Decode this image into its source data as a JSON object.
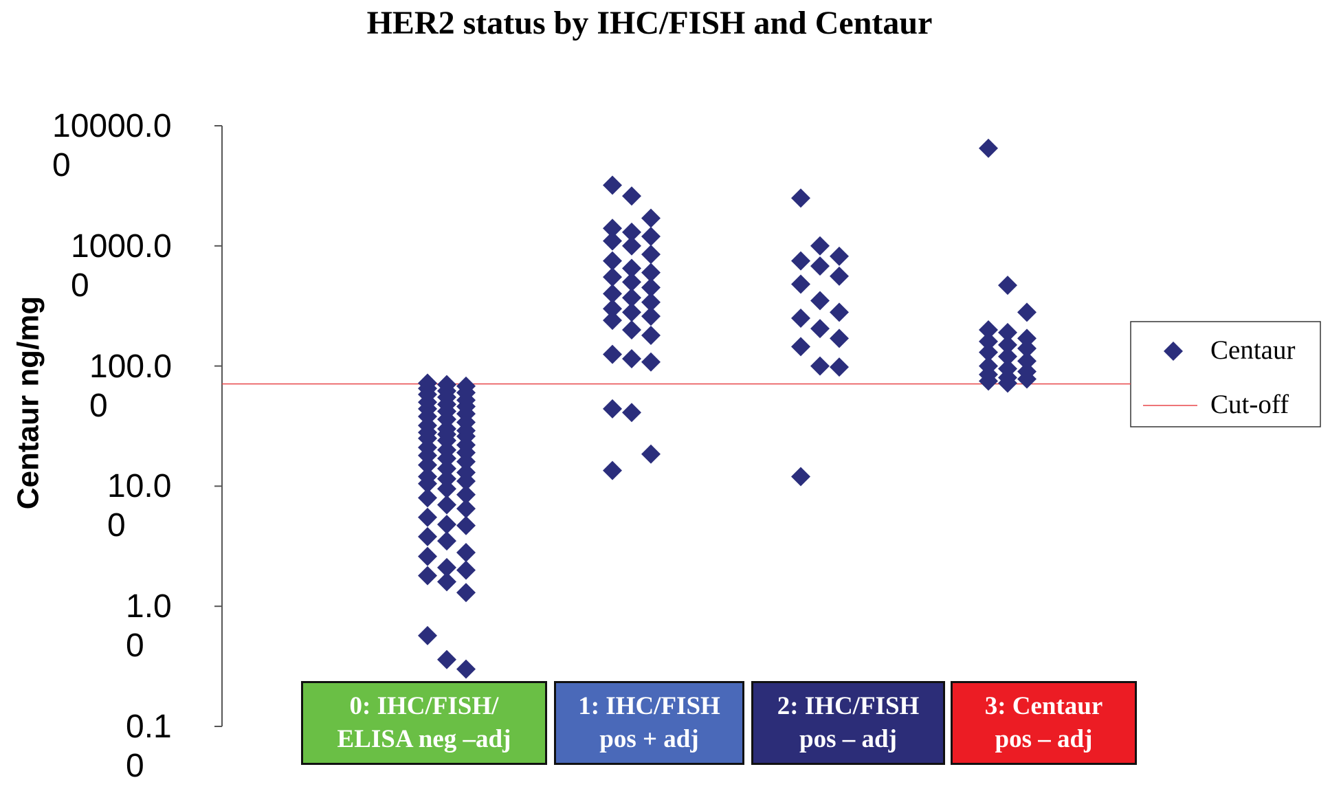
{
  "chart_data": {
    "type": "scatter",
    "title": "HER2 status by IHC/FISH and Centaur",
    "y_label": "Centaur ng/mg",
    "log_y": true,
    "ylim": [
      0.1,
      10000
    ],
    "yticks": [
      {
        "value": 10000,
        "label": "10000.00"
      },
      {
        "value": 1000,
        "label": "1000.00"
      },
      {
        "value": 100,
        "label": "100.00"
      },
      {
        "value": 10,
        "label": "10.00"
      },
      {
        "value": 1,
        "label": "1.00"
      },
      {
        "value": 0.1,
        "label": "0.10"
      }
    ],
    "categories": [
      "0: IHC/FISH/\nELISA neg  –adj",
      "1: IHC/FISH\npos + adj",
      "2: IHC/FISH\npos  –  adj",
      "3: Centaur\npos  –  adj"
    ],
    "category_colors": [
      "#6abf45",
      "#4a69b9",
      "#2c2d78",
      "#ec1c24"
    ],
    "series": [
      {
        "name": "Centaur",
        "color": "#2b2e7c",
        "values": [
          [
            72,
            70,
            68,
            65,
            62,
            60,
            58,
            55,
            52,
            50,
            48,
            46,
            44,
            42,
            40,
            38,
            36,
            34,
            32,
            30,
            29,
            28,
            27,
            26,
            25,
            24,
            22,
            21,
            20,
            19,
            18,
            17,
            16,
            15,
            14,
            13,
            12,
            11.5,
            11,
            10.5,
            9.5,
            8.5,
            8,
            7,
            6.5,
            5.5,
            4.8,
            4.7,
            3.8,
            3.5,
            2.8,
            2.6,
            2.1,
            2,
            1.8,
            1.6,
            1.3,
            0.57,
            0.36,
            0.3
          ],
          [
            3200,
            2600,
            1700,
            1400,
            1300,
            1200,
            1100,
            1000,
            850,
            750,
            650,
            600,
            550,
            500,
            450,
            400,
            370,
            340,
            300,
            280,
            260,
            240,
            200,
            180,
            125,
            115,
            108,
            44,
            41,
            18.5,
            13.5
          ],
          [
            2500,
            1000,
            820,
            750,
            680,
            560,
            480,
            350,
            280,
            250,
            205,
            170,
            145,
            100,
            98,
            12
          ],
          [
            6500,
            470,
            280,
            200,
            190,
            170,
            160,
            150,
            140,
            130,
            120,
            110,
            100,
            95,
            90,
            85,
            80,
            78,
            75,
            72
          ]
        ]
      }
    ],
    "reference_line": {
      "name": "Cut-off",
      "value": 71,
      "color": "#e8474a"
    }
  }
}
